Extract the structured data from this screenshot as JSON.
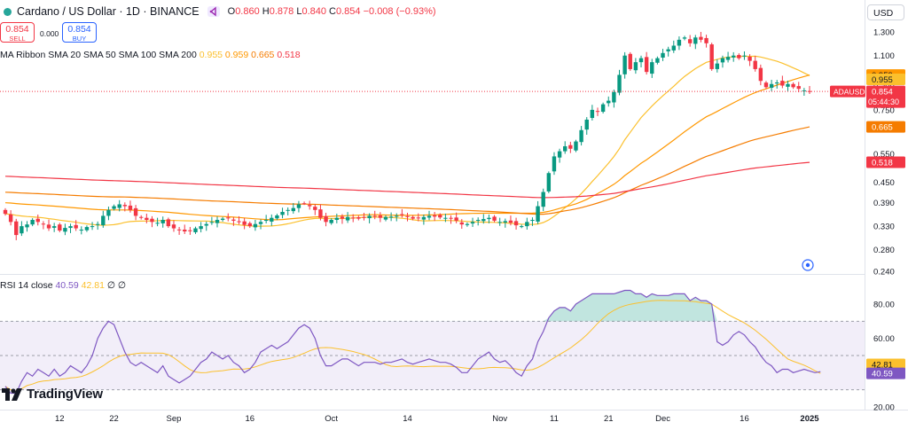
{
  "header": {
    "symbol": "Cardano / US Dollar · 1D · BINANCE",
    "o_label": "O",
    "o_value": "0.860",
    "h_label": "H",
    "h_value": "0.878",
    "l_label": "L",
    "l_value": "0.840",
    "c_label": "C",
    "c_value": "0.854",
    "change": "−0.008 (−0.93%)",
    "status_color": "#26a69a"
  },
  "trade": {
    "sell_price": "0.854",
    "sell_label": "SELL",
    "spread": "0.000",
    "buy_price": "0.854",
    "buy_label": "BUY"
  },
  "currency_button": "USD",
  "ma_legend": {
    "label": "MA Ribbon  SMA 20  SMA 50  SMA 100  SMA 200",
    "v20": "0.955",
    "v50": "0.959",
    "v100": "0.665",
    "v200": "0.518",
    "c20": "#fbc02d",
    "c50": "#ff9800",
    "c100": "#f57c00",
    "c200": "#f23645"
  },
  "rsi_legend": {
    "label": "RSI  14  close",
    "rsi": "40.59",
    "ma": "42.81",
    "tail": "∅  ∅",
    "c_rsi": "#7e57c2",
    "c_ma": "#fbc02d"
  },
  "brand": "TradingView",
  "price_axis": {
    "ticks": [
      "1.300",
      "1.100",
      "0.900",
      "0.750",
      "0.550",
      "0.450",
      "0.390",
      "0.330",
      "0.280",
      "0.240"
    ],
    "symbol_tag": "ADAUSD",
    "last_price": "0.854",
    "countdown": "05:44:30"
  },
  "rsi_axis": {
    "ticks": [
      "80.00",
      "60.00",
      "20.00"
    ]
  },
  "time_axis": {
    "labels": [
      "12",
      "22",
      "Sep",
      "16",
      "Oct",
      "14",
      "Nov",
      "11",
      "21",
      "Dec",
      "16",
      "2025"
    ]
  },
  "chart_data": [
    {
      "type": "candlestick",
      "title": "Cardano / US Dollar · 1D · BINANCE",
      "interval": "1D",
      "x_range": [
        "2024-08-02",
        "2024-12-31"
      ],
      "y_scale": "log",
      "y_ticks": [
        1.3,
        1.1,
        0.9,
        0.75,
        0.55,
        0.45,
        0.39,
        0.33,
        0.28,
        0.24
      ],
      "close": [
        0.36,
        0.34,
        0.31,
        0.33,
        0.334,
        0.345,
        0.34,
        0.335,
        0.325,
        0.33,
        0.32,
        0.326,
        0.33,
        0.325,
        0.322,
        0.328,
        0.33,
        0.335,
        0.355,
        0.37,
        0.38,
        0.385,
        0.38,
        0.37,
        0.355,
        0.35,
        0.345,
        0.34,
        0.338,
        0.345,
        0.33,
        0.325,
        0.322,
        0.318,
        0.32,
        0.325,
        0.33,
        0.335,
        0.34,
        0.345,
        0.348,
        0.35,
        0.343,
        0.34,
        0.333,
        0.33,
        0.335,
        0.34,
        0.345,
        0.35,
        0.356,
        0.365,
        0.37,
        0.375,
        0.385,
        0.388,
        0.38,
        0.37,
        0.35,
        0.34,
        0.345,
        0.35,
        0.348,
        0.352,
        0.35,
        0.348,
        0.352,
        0.355,
        0.353,
        0.35,
        0.352,
        0.353,
        0.355,
        0.357,
        0.352,
        0.348,
        0.35,
        0.352,
        0.355,
        0.353,
        0.351,
        0.35,
        0.348,
        0.343,
        0.334,
        0.335,
        0.34,
        0.345,
        0.347,
        0.35,
        0.343,
        0.34,
        0.342,
        0.338,
        0.332,
        0.33,
        0.34,
        0.345,
        0.38,
        0.42,
        0.48,
        0.54,
        0.56,
        0.58,
        0.57,
        0.6,
        0.65,
        0.7,
        0.75,
        0.74,
        0.78,
        0.8,
        0.85,
        0.96,
        1.1,
        1.0,
        1.05,
        1.08,
        0.98,
        1.05,
        1.08,
        1.12,
        1.15,
        1.18,
        1.23,
        1.25,
        1.2,
        1.25,
        1.23,
        1.2,
        1.0,
        1.04,
        1.08,
        1.09,
        1.1,
        1.08,
        1.1,
        1.06,
        1.0,
        0.92,
        0.88,
        0.9,
        0.91,
        0.89,
        0.9,
        0.88,
        0.87,
        0.86,
        0.854
      ],
      "candles_note": "one value per daily candle, read off the log price axis"
    },
    {
      "type": "line",
      "title": "MA Ribbon",
      "series": [
        {
          "name": "SMA 20",
          "color": "#fbc02d",
          "last": 0.955
        },
        {
          "name": "SMA 50",
          "color": "#ff9800",
          "last": 0.959
        },
        {
          "name": "SMA 100",
          "color": "#f57c00",
          "last": 0.665
        },
        {
          "name": "SMA 200",
          "color": "#f23645",
          "last": 0.518
        }
      ]
    },
    {
      "type": "line",
      "title": "RSI 14 close",
      "ylim": [
        20,
        100
      ],
      "bands": {
        "upper": 70,
        "middle": 50,
        "lower": 30
      },
      "series": [
        {
          "name": "RSI",
          "color": "#7e57c2",
          "last": 40.59,
          "values": [
            32,
            28,
            28,
            35,
            40,
            38,
            42,
            40,
            38,
            42,
            38,
            40,
            44,
            42,
            40,
            44,
            50,
            60,
            66,
            70,
            68,
            60,
            52,
            46,
            44,
            46,
            44,
            42,
            40,
            44,
            38,
            36,
            34,
            36,
            38,
            42,
            46,
            48,
            52,
            50,
            48,
            50,
            46,
            44,
            40,
            42,
            46,
            52,
            54,
            56,
            54,
            56,
            58,
            62,
            66,
            68,
            66,
            60,
            50,
            44,
            44,
            46,
            48,
            48,
            46,
            44,
            46,
            46,
            46,
            45,
            46,
            46,
            47,
            48,
            46,
            45,
            46,
            47,
            48,
            47,
            46,
            46,
            45,
            43,
            40,
            40,
            44,
            48,
            50,
            52,
            48,
            46,
            47,
            44,
            40,
            38,
            44,
            48,
            58,
            64,
            72,
            76,
            78,
            78,
            76,
            80,
            82,
            84,
            86,
            86,
            86,
            86,
            86,
            87,
            88,
            88,
            86,
            86,
            84,
            86,
            85,
            85,
            85,
            86,
            86,
            86,
            82,
            84,
            82,
            82,
            80,
            58,
            56,
            58,
            62,
            64,
            62,
            58,
            55,
            50,
            46,
            44,
            40,
            42,
            42,
            40,
            41,
            42,
            41,
            40,
            40.59
          ]
        },
        {
          "name": "RSI-based MA",
          "color": "#fbc02d",
          "last": 42.81
        }
      ]
    }
  ]
}
